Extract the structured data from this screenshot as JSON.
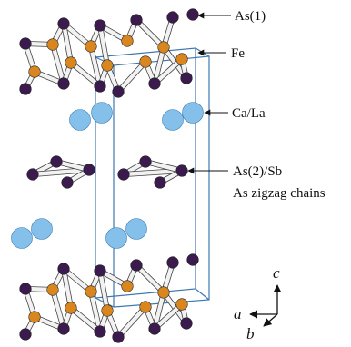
{
  "labels": {
    "as1": "As(1)",
    "fe": "Fe",
    "cala": "Ca/La",
    "as2sb": "As(2)/Sb",
    "zigzag": "As zigzag chains"
  },
  "axes": {
    "c": "c",
    "a": "a",
    "b": "b"
  },
  "colors": {
    "as": "#3b1a4e",
    "fe": "#d9861e",
    "cala_fill": "#85c0ea",
    "cala_stroke": "#3a7fb6",
    "cell": "#3f77b2",
    "bond_fill": "#f2f2f2",
    "bond_stroke": "#444444"
  }
}
